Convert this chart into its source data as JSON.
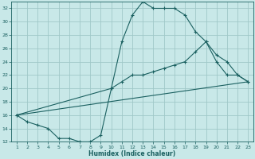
{
  "xlabel": "Humidex (Indice chaleur)",
  "bg_color": "#c8e8e8",
  "grid_color": "#a0c8c8",
  "line_color": "#1a6060",
  "xlim": [
    0.5,
    23.5
  ],
  "ylim": [
    12,
    33
  ],
  "yticks": [
    12,
    14,
    16,
    18,
    20,
    22,
    24,
    26,
    28,
    30,
    32
  ],
  "xticks": [
    1,
    2,
    3,
    4,
    5,
    6,
    7,
    8,
    9,
    10,
    11,
    12,
    13,
    14,
    15,
    16,
    17,
    18,
    19,
    20,
    21,
    22,
    23
  ],
  "curve1_x": [
    1,
    2,
    3,
    4,
    5,
    6,
    7,
    8,
    9,
    10,
    11,
    12,
    13,
    14,
    15,
    16,
    17,
    18,
    19,
    20,
    21,
    22,
    23
  ],
  "curve1_y": [
    16,
    15,
    14.5,
    14,
    12.5,
    12.5,
    12,
    12,
    13,
    20,
    27,
    31,
    33,
    32,
    32,
    32,
    31,
    28.5,
    27,
    24,
    22,
    22,
    21
  ],
  "curve2_x": [
    1,
    10,
    11,
    12,
    13,
    14,
    15,
    16,
    17,
    18,
    19,
    20,
    21,
    22,
    23
  ],
  "curve2_y": [
    16,
    20,
    21,
    22,
    22,
    22.5,
    23,
    23.5,
    24,
    25.5,
    27,
    25,
    24,
    22,
    21
  ],
  "curve3_x": [
    1,
    23
  ],
  "curve3_y": [
    16,
    21
  ]
}
